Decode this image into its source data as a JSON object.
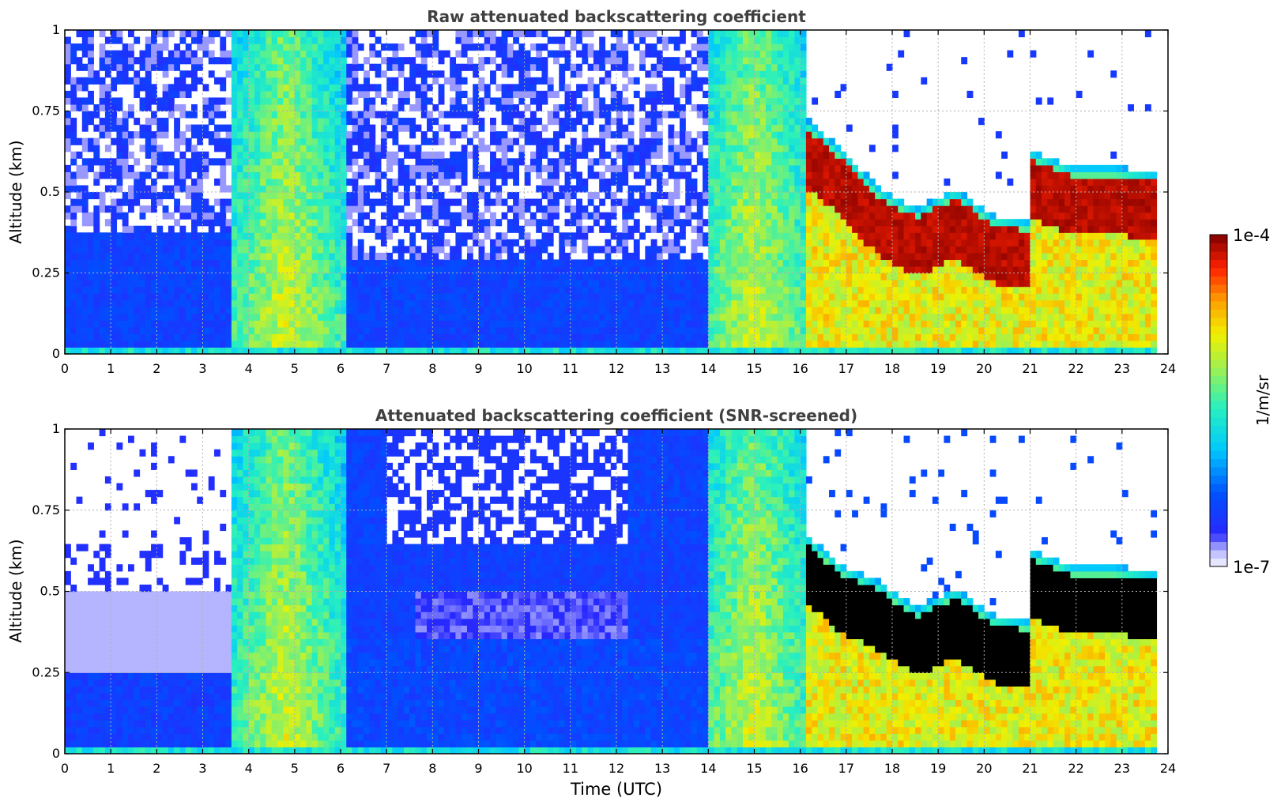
{
  "figure": {
    "xlabel": "Time (UTC)",
    "colorbar": {
      "label": "1/m/sr",
      "max_label": "1e-4",
      "min_label": "1e-7",
      "vmin": 1e-07,
      "vmax": 0.0001,
      "scale": "log",
      "colormap": "jet-like (white at low end, blue, cyan, green, yellow, orange, red, dark red at high end)"
    }
  },
  "chart_data": [
    {
      "type": "heatmap",
      "title": "Raw attenuated backscattering coefficient",
      "xlabel": "",
      "ylabel": "Altitude (km)",
      "xlim": [
        0,
        24
      ],
      "ylim": [
        0,
        1
      ],
      "xticks": [
        0,
        1,
        2,
        3,
        4,
        5,
        6,
        7,
        8,
        9,
        10,
        11,
        12,
        13,
        14,
        15,
        16,
        17,
        18,
        19,
        20,
        21,
        22,
        23,
        24
      ],
      "yticks": [
        0,
        0.25,
        0.5,
        0.75,
        1
      ],
      "ytick_labels": [
        "0",
        "0.25",
        "0.5",
        "0.75",
        "1"
      ],
      "grid": true,
      "data_end_time": 23.75,
      "background_noise": "speckled blue/white noise aloft before 16 UTC, white after 16 UTC",
      "features": [
        {
          "name": "boundary layer aerosol",
          "t": [
            0,
            3.6
          ],
          "alt": [
            0,
            0.38
          ],
          "level": "blue"
        },
        {
          "name": "precipitation",
          "t": [
            3.6,
            6.1
          ],
          "alt": [
            0,
            1
          ],
          "level": "cyan-yellow"
        },
        {
          "name": "precipitation",
          "t": [
            14.0,
            16.1
          ],
          "alt": [
            0,
            1
          ],
          "level": "cyan-yellow"
        },
        {
          "name": "cloud layer",
          "t": [
            16.1,
            21.0
          ],
          "top_km": [
            0.7,
            0.6,
            0.48,
            0.42,
            0.48,
            0.4,
            0.38
          ],
          "level": "dark red"
        },
        {
          "name": "cloud layer",
          "t": [
            21.0,
            23.75
          ],
          "top_km": [
            0.6,
            0.55,
            0.55,
            0.53
          ],
          "level": "dark red"
        }
      ]
    },
    {
      "type": "heatmap",
      "title": "Attenuated backscattering coefficient (SNR-screened)",
      "xlabel": "Time (UTC)",
      "ylabel": "Altitude (km)",
      "xlim": [
        0,
        24
      ],
      "ylim": [
        0,
        1
      ],
      "xticks": [
        0,
        1,
        2,
        3,
        4,
        5,
        6,
        7,
        8,
        9,
        10,
        11,
        12,
        13,
        14,
        15,
        16,
        17,
        18,
        19,
        20,
        21,
        22,
        23,
        24
      ],
      "yticks": [
        0,
        0.25,
        0.5,
        0.75,
        1
      ],
      "ytick_labels": [
        "0",
        "0.25",
        "0.5",
        "0.75",
        "1"
      ],
      "grid": true,
      "data_end_time": 23.75,
      "background_noise": "low-SNR pixels removed (white); saturated cloud core shown in black",
      "features": [
        {
          "name": "boundary layer aerosol",
          "t": [
            0,
            3.6
          ],
          "alt": [
            0,
            0.5
          ],
          "level": "blue / pale blue"
        },
        {
          "name": "aerosol layer",
          "t": [
            7.6,
            12.2
          ],
          "alt": [
            0.35,
            0.5
          ],
          "level": "pale blue"
        },
        {
          "name": "precipitation",
          "t": [
            3.6,
            6.1
          ],
          "alt": [
            0,
            1
          ],
          "level": "cyan-yellow"
        },
        {
          "name": "cloud layer (saturated)",
          "t": [
            16.1,
            21.0
          ],
          "top_km": [
            0.65,
            0.55,
            0.5,
            0.42,
            0.48,
            0.4,
            0.38
          ],
          "level": "black"
        },
        {
          "name": "cloud layer (saturated)",
          "t": [
            21.0,
            23.75
          ],
          "top_km": [
            0.6,
            0.55,
            0.55,
            0.53
          ],
          "level": "black"
        }
      ]
    }
  ]
}
